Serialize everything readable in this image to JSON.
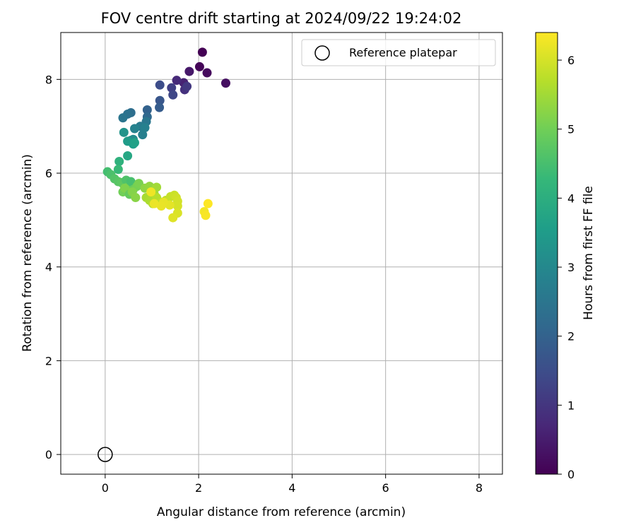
{
  "chart_data": {
    "type": "scatter",
    "title": "FOV centre drift starting at 2024/09/22 19:24:02",
    "xlabel": "Angular distance from reference (arcmin)",
    "ylabel": "Rotation from reference (arcmin)",
    "xlim": [
      -0.95,
      8.5
    ],
    "ylim": [
      -0.42,
      9.0
    ],
    "xticks": [
      0,
      2,
      4,
      6,
      8
    ],
    "yticks": [
      0,
      2,
      4,
      6,
      8
    ],
    "grid": true,
    "legend": {
      "placement": "upper right",
      "entries": [
        "Reference platepar"
      ]
    },
    "reference_point": {
      "label": "Reference platepar",
      "x": 0,
      "y": 0
    },
    "colorbar": {
      "label": "Hours from first FF file",
      "colormap": "viridis",
      "range": [
        0,
        6.4
      ],
      "ticks": [
        0,
        1,
        2,
        3,
        4,
        5,
        6
      ]
    },
    "series": [
      {
        "color_by": "hours",
        "x": [
          2.08,
          2.02,
          2.18,
          2.58,
          1.8,
          1.68,
          1.53,
          1.7,
          1.75,
          1.42,
          1.45,
          1.17,
          1.17,
          1.16,
          0.9,
          0.9,
          0.55,
          0.48,
          0.38,
          0.88,
          0.75,
          0.8,
          0.63,
          0.55,
          0.6,
          0.85,
          0.4,
          0.48,
          0.6,
          0.63,
          0.48,
          0.3,
          0.28,
          0.05,
          0.12,
          0.2,
          0.28,
          0.35,
          0.4,
          0.45,
          0.48,
          0.55,
          0.6,
          0.68,
          0.72,
          0.38,
          0.42,
          0.52,
          0.58,
          0.65,
          0.85,
          0.95,
          1.0,
          1.05,
          1.1,
          0.88,
          0.95,
          1.02,
          1.1,
          1.2,
          1.3,
          1.4,
          1.48,
          1.52,
          1.55,
          1.55,
          1.55,
          1.45,
          1.38,
          1.25,
          1.2,
          1.05,
          0.98,
          2.12,
          2.15,
          2.2
        ],
        "y": [
          8.58,
          8.27,
          8.14,
          7.92,
          8.17,
          7.93,
          7.98,
          7.78,
          7.85,
          7.82,
          7.67,
          7.88,
          7.55,
          7.4,
          7.35,
          7.2,
          7.29,
          7.26,
          7.18,
          7.1,
          7.0,
          6.82,
          6.95,
          6.7,
          6.72,
          6.97,
          6.87,
          6.68,
          6.62,
          6.65,
          6.37,
          6.25,
          6.08,
          6.03,
          5.97,
          5.88,
          5.82,
          5.8,
          5.75,
          5.85,
          5.7,
          5.82,
          5.65,
          5.72,
          5.78,
          5.6,
          5.68,
          5.55,
          5.6,
          5.48,
          5.68,
          5.72,
          5.62,
          5.55,
          5.7,
          5.48,
          5.42,
          5.35,
          5.48,
          5.38,
          5.42,
          5.5,
          5.53,
          5.48,
          5.4,
          5.3,
          5.15,
          5.05,
          5.32,
          5.38,
          5.3,
          5.35,
          5.6,
          5.18,
          5.1,
          5.35
        ],
        "hours": [
          0.0,
          0.08,
          0.17,
          0.25,
          0.42,
          0.6,
          0.75,
          0.9,
          1.05,
          1.2,
          1.35,
          1.5,
          1.7,
          1.85,
          2.0,
          2.15,
          2.3,
          2.4,
          2.5,
          2.55,
          2.65,
          2.75,
          2.85,
          3.0,
          3.1,
          2.8,
          3.3,
          3.5,
          3.55,
          3.65,
          3.8,
          4.1,
          4.3,
          4.45,
          4.55,
          4.65,
          4.7,
          4.75,
          4.8,
          4.6,
          4.9,
          4.5,
          4.95,
          5.05,
          5.1,
          5.0,
          5.15,
          4.85,
          5.2,
          5.25,
          5.3,
          5.35,
          5.4,
          5.45,
          5.5,
          5.55,
          5.6,
          5.65,
          5.7,
          5.75,
          5.8,
          5.85,
          5.9,
          5.95,
          5.98,
          6.0,
          6.05,
          6.1,
          6.15,
          6.18,
          6.2,
          6.22,
          6.25,
          6.3,
          6.35,
          6.4
        ]
      }
    ]
  }
}
